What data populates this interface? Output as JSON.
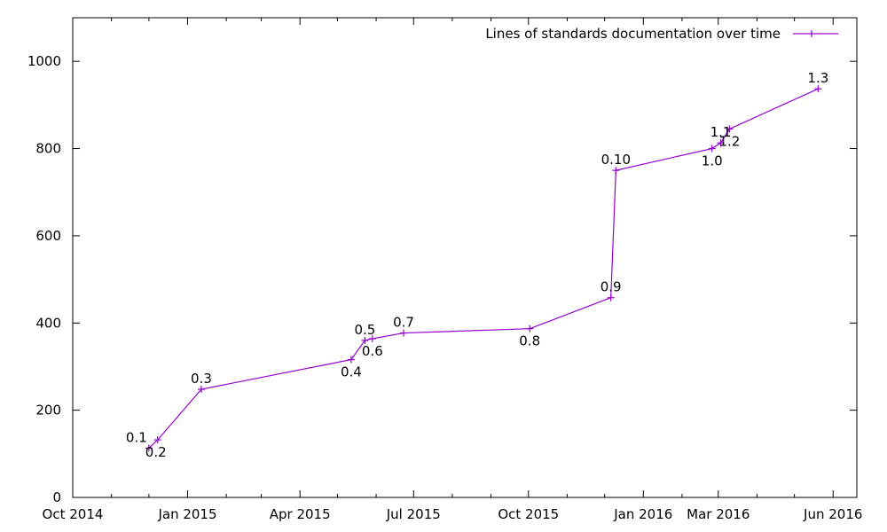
{
  "chart_data": {
    "type": "line",
    "title": "",
    "xlabel": "",
    "ylabel": "",
    "x_scale": "date",
    "xlim": [
      "2014-10-01",
      "2016-06-20"
    ],
    "ylim": [
      0,
      1100
    ],
    "grid": false,
    "legend_position": "top-right",
    "series_color": "#9400d3",
    "x_ticks": [
      {
        "date": "2014-10-01",
        "label": "Oct 2014"
      },
      {
        "date": "2015-01-01",
        "label": "Jan 2015"
      },
      {
        "date": "2015-04-01",
        "label": "Apr 2015"
      },
      {
        "date": "2015-07-01",
        "label": "Jul 2015"
      },
      {
        "date": "2015-10-01",
        "label": "Oct 2015"
      },
      {
        "date": "2016-01-01",
        "label": "Jan 2016"
      },
      {
        "date": "2016-03-01",
        "label": "Mar 2016"
      },
      {
        "date": "2016-06-01",
        "label": "Jun 2016"
      }
    ],
    "x_minor_ticks": [
      "2014-11-01",
      "2014-12-01",
      "2015-02-01",
      "2015-03-01",
      "2015-05-01",
      "2015-06-01",
      "2015-08-01",
      "2015-09-01",
      "2015-11-01",
      "2015-12-01",
      "2016-02-01",
      "2016-04-01",
      "2016-05-01"
    ],
    "y_ticks": [
      {
        "value": 0,
        "label": "0"
      },
      {
        "value": 200,
        "label": "200"
      },
      {
        "value": 400,
        "label": "400"
      },
      {
        "value": 600,
        "label": "600"
      },
      {
        "value": 800,
        "label": "800"
      },
      {
        "value": 1000,
        "label": "1000"
      }
    ],
    "series": [
      {
        "name": "Lines of standards documentation over time",
        "points": [
          {
            "date": "2014-12-01",
            "value": 113,
            "label": "0.1",
            "label_pos": "above-left"
          },
          {
            "date": "2014-12-08",
            "value": 132,
            "label": "0.2",
            "label_pos": "below-left"
          },
          {
            "date": "2015-01-12",
            "value": 248,
            "label": "0.3",
            "label_pos": "above"
          },
          {
            "date": "2015-05-12",
            "value": 316,
            "label": "0.4",
            "label_pos": "below"
          },
          {
            "date": "2015-05-23",
            "value": 360,
            "label": "0.5",
            "label_pos": "above"
          },
          {
            "date": "2015-05-29",
            "value": 364,
            "label": "0.6",
            "label_pos": "below"
          },
          {
            "date": "2015-06-23",
            "value": 377,
            "label": "0.7",
            "label_pos": "above"
          },
          {
            "date": "2015-10-02",
            "value": 387,
            "label": "0.8",
            "label_pos": "below"
          },
          {
            "date": "2015-12-06",
            "value": 458,
            "label": "0.9",
            "label_pos": "above"
          },
          {
            "date": "2015-12-10",
            "value": 750,
            "label": "0.10",
            "label_pos": "above"
          },
          {
            "date": "2016-02-25",
            "value": 800,
            "label": "1.0",
            "label_pos": "below"
          },
          {
            "date": "2016-03-03",
            "value": 813,
            "label": "1.1",
            "label_pos": "above"
          },
          {
            "date": "2016-03-10",
            "value": 845,
            "label": "1.2",
            "label_pos": "below"
          },
          {
            "date": "2016-05-20",
            "value": 937,
            "label": "1.3",
            "label_pos": "above"
          }
        ]
      }
    ]
  }
}
